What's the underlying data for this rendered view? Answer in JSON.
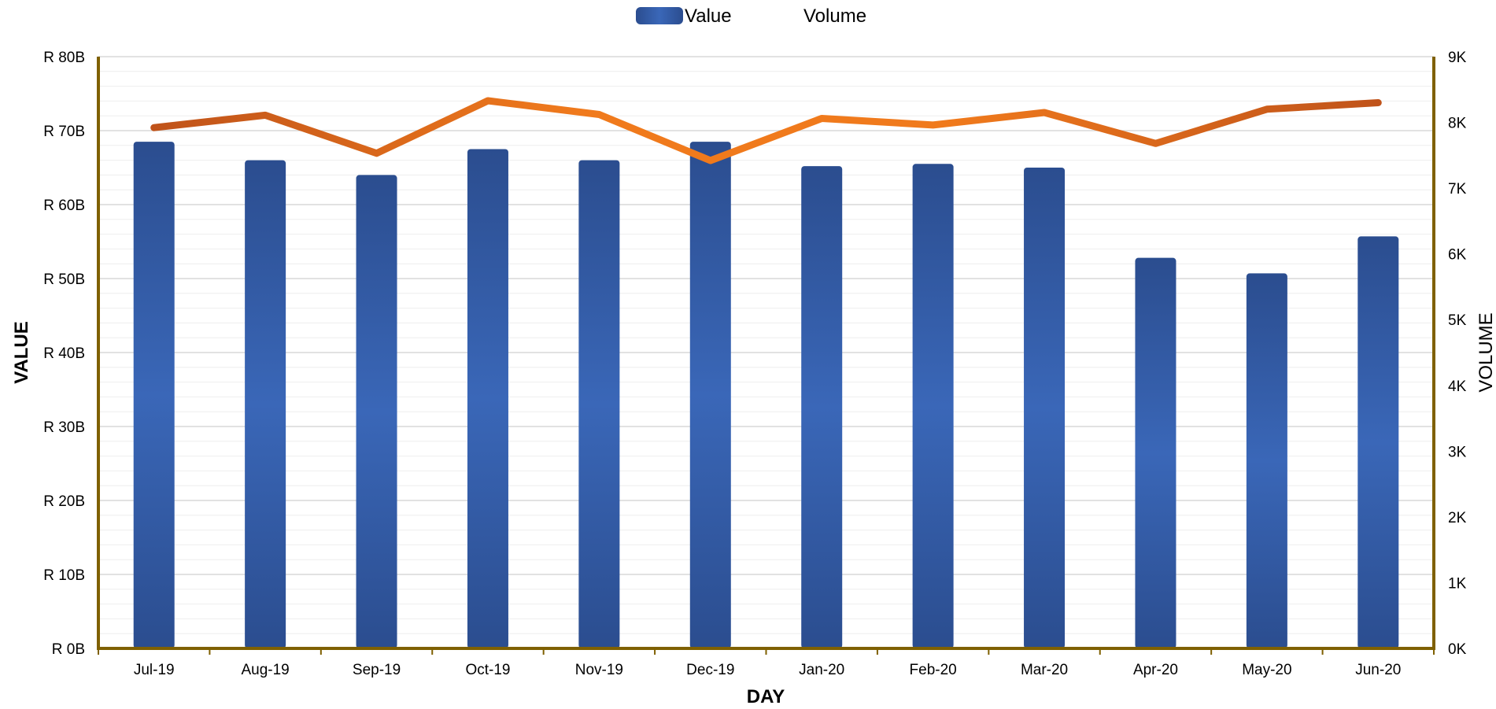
{
  "chart_data": {
    "type": "bar",
    "title": "",
    "xlabel": "DAY",
    "ylabel": "VALUE",
    "y2label": "VOLUME",
    "categories": [
      "Jul-19",
      "Aug-19",
      "Sep-19",
      "Oct-19",
      "Nov-19",
      "Dec-19",
      "Jan-20",
      "Feb-20",
      "Mar-20",
      "Apr-20",
      "May-20",
      "Jun-20"
    ],
    "series": [
      {
        "name": "Value",
        "type": "bar",
        "axis": "left",
        "unit": "R billions",
        "values": [
          68.5,
          66.0,
          64.0,
          67.5,
          66.0,
          68.5,
          65.2,
          65.5,
          65.0,
          52.8,
          50.7,
          55.7
        ]
      },
      {
        "name": "Volume",
        "type": "line",
        "axis": "right",
        "unit": "count",
        "values": [
          7920,
          8110,
          7530,
          8330,
          8120,
          7420,
          8060,
          7960,
          8150,
          7680,
          8200,
          8300
        ]
      }
    ],
    "ylim": [
      0,
      80
    ],
    "y2lim": [
      0,
      9000
    ],
    "yticks": [
      "R 0B",
      "R 10B",
      "R 20B",
      "R 30B",
      "R 40B",
      "R 50B",
      "R 60B",
      "R 70B",
      "R 80B"
    ],
    "y2ticks": [
      "0K",
      "1K",
      "2K",
      "3K",
      "4K",
      "5K",
      "6K",
      "7K",
      "8K",
      "9K"
    ],
    "legend_position": "top-center",
    "grid": true,
    "colors": {
      "bar_dark": "#2b4d8f",
      "bar_light": "#3a67b8",
      "line_dark": "#c0531a",
      "line_light": "#f07a1c",
      "axis": "#7f6000",
      "grid_major": "#d9d9d9",
      "grid_minor": "#eeeeee"
    }
  }
}
